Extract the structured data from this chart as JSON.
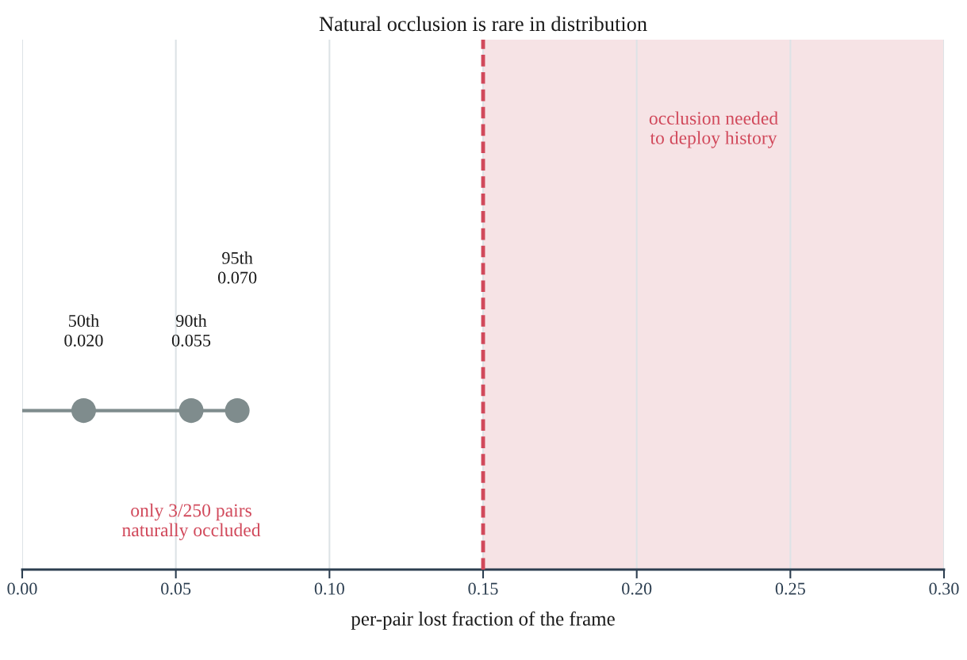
{
  "chart_data": {
    "type": "lollipop",
    "orientation": "horizontal",
    "title": "Natural occlusion is rare in distribution",
    "xlabel": "per-pair lost fraction of the frame",
    "categories": [
      null
    ],
    "series": [
      {
        "color": "#7f8c8d",
        "values": [
          0.07
        ]
      },
      {
        "type": "scatter",
        "color": "#7f8c8d",
        "values": [
          0.02
        ]
      },
      {
        "type": "scatter",
        "color": "#7f8c8d",
        "values": [
          0.055
        ]
      }
    ],
    "marker": "circle",
    "xlim": [
      0,
      0.3
    ],
    "xticks": [
      {
        "value": 0,
        "label": "0.00"
      },
      {
        "value": 0.05,
        "label": "0.05"
      },
      {
        "value": 0.1,
        "label": "0.10"
      },
      {
        "value": 0.15,
        "label": "0.15"
      },
      {
        "value": 0.2,
        "label": "0.20"
      },
      {
        "value": 0.25,
        "label": "0.25"
      },
      {
        "value": 0.3,
        "label": "0.30"
      }
    ],
    "grid": "x",
    "ref_lines": [
      {
        "axis": "x",
        "value": 0.15,
        "color": "#d1495b",
        "line_style": "dashed"
      }
    ],
    "bands": [
      {
        "axis": "x",
        "from": 0.15,
        "to": 0.3,
        "label": "occlusion needed\nto deploy history",
        "color": "#f6e3e5"
      }
    ],
    "annotations": [
      "50th\n0.020",
      "90th\n0.055",
      "95th\n0.070",
      "only 3/250 pairs\nnaturally occluded"
    ]
  }
}
